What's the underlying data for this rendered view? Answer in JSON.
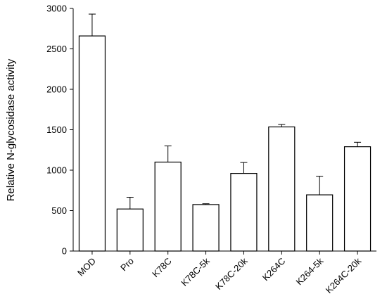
{
  "chart_data": {
    "type": "bar",
    "ylabel": "Relative N-glycosidase activity",
    "xlabel": "",
    "ylim": [
      0,
      3000
    ],
    "yticks": [
      0,
      500,
      1000,
      1500,
      2000,
      2500,
      3000
    ],
    "categories": [
      "MOD",
      "Pro",
      "K78C",
      "K78C-5k",
      "K78C-20k",
      "K264C",
      "K264-5k",
      "K264C-20k"
    ],
    "values": [
      2660,
      520,
      1100,
      575,
      960,
      1535,
      695,
      1290
    ],
    "errors": [
      270,
      145,
      200,
      10,
      135,
      30,
      230,
      55
    ],
    "colors": {
      "bar_fill": "#ffffff",
      "bar_stroke": "#000000"
    }
  }
}
